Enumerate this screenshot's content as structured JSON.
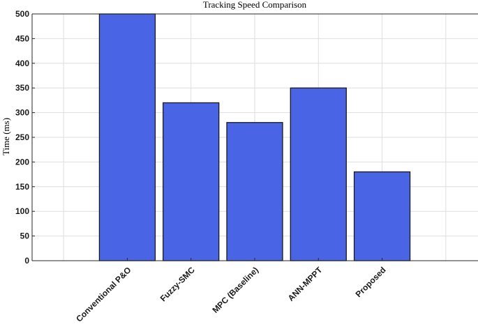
{
  "chart_data": {
    "type": "bar",
    "title": "Tracking Speed Comparison",
    "xlabel": "",
    "ylabel": "Time (ms)",
    "categories": [
      "Conventional P&O",
      "Fuzzy-SMC",
      "MPC (Baseline)",
      "ANN-MPPT",
      "Proposed"
    ],
    "values": [
      500,
      320,
      280,
      350,
      180
    ],
    "ylim": [
      0,
      500
    ],
    "yticks": [
      "0",
      "50",
      "100",
      "150",
      "200",
      "250",
      "300",
      "350",
      "400",
      "450",
      "500"
    ],
    "grid": true,
    "bar_color": "#4a64e6",
    "bar_edge_color": "#1a1a1a"
  }
}
